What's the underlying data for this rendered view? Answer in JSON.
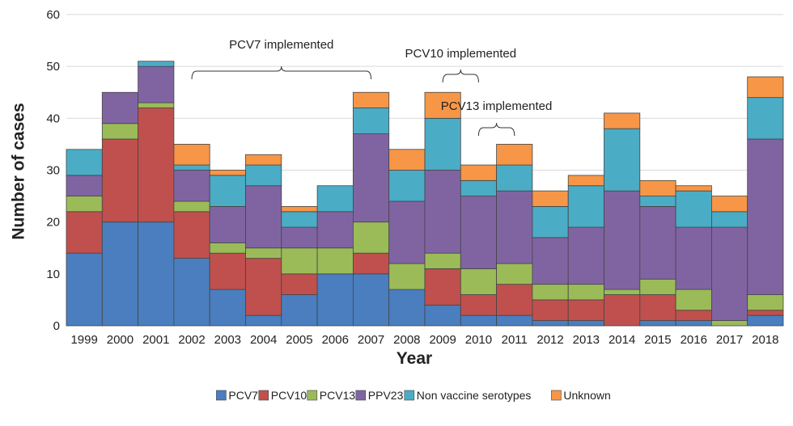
{
  "chart_data": {
    "type": "bar",
    "stacked": true,
    "xlabel": "Year",
    "ylabel": "Number of cases",
    "ylim": [
      0,
      60
    ],
    "yticks": [
      "0",
      "10",
      "20",
      "30",
      "40",
      "50",
      "60"
    ],
    "grid": "horizontal",
    "legend_position": "bottom",
    "categories": [
      "1999",
      "2000",
      "2001",
      "2002",
      "2003",
      "2004",
      "2005",
      "2006",
      "2007",
      "2008",
      "2009",
      "2010",
      "2011",
      "2012",
      "2013",
      "2014",
      "2015",
      "2016",
      "2017",
      "2018"
    ],
    "series": [
      {
        "name": "PCV7",
        "color": "#4a7ebf",
        "values": [
          14,
          20,
          20,
          13,
          7,
          2,
          6,
          10,
          10,
          7,
          4,
          2,
          2,
          1,
          1,
          0,
          1,
          1,
          0,
          2
        ]
      },
      {
        "name": "PCV10",
        "color": "#c0504d",
        "values": [
          8,
          16,
          22,
          9,
          7,
          11,
          4,
          0,
          4,
          0,
          7,
          4,
          6,
          4,
          4,
          6,
          5,
          2,
          0,
          1
        ]
      },
      {
        "name": "PCV13",
        "color": "#9bbb59",
        "values": [
          3,
          3,
          1,
          2,
          2,
          2,
          5,
          5,
          6,
          5,
          3,
          5,
          4,
          3,
          3,
          1,
          3,
          4,
          1,
          3
        ]
      },
      {
        "name": "PPV23",
        "color": "#8064a2",
        "values": [
          4,
          6,
          7,
          6,
          7,
          12,
          4,
          7,
          17,
          12,
          16,
          14,
          14,
          9,
          11,
          19,
          14,
          12,
          18,
          30
        ]
      },
      {
        "name": "Non vaccine serotypes",
        "color": "#4bacc6",
        "values": [
          5,
          0,
          1,
          1,
          6,
          4,
          3,
          5,
          5,
          6,
          10,
          3,
          5,
          6,
          8,
          12,
          2,
          7,
          3,
          8
        ]
      },
      {
        "name": "Unknown",
        "color": "#f79646",
        "values": [
          0,
          0,
          0,
          4,
          1,
          2,
          1,
          0,
          3,
          4,
          5,
          3,
          4,
          3,
          2,
          3,
          3,
          1,
          3,
          4
        ]
      }
    ],
    "annotations": [
      {
        "label": "PCV7 implemented",
        "from": "2002",
        "to": "2007"
      },
      {
        "label": "PCV10 implemented",
        "from": "2009",
        "to": "2010"
      },
      {
        "label": "PCV13 implemented",
        "from": "2010",
        "to": "2011"
      }
    ]
  }
}
